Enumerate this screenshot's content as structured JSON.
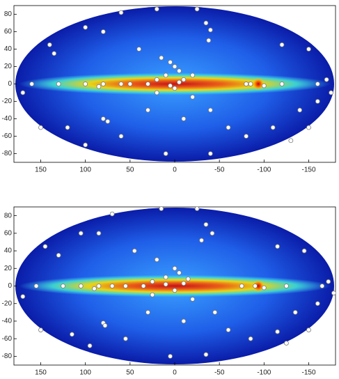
{
  "chart_data": [
    {
      "type": "scatter",
      "color": "#ffffff",
      "x": [
        60,
        20,
        -25,
        -35,
        -40,
        -38,
        40,
        15,
        5,
        0,
        -5,
        10,
        20,
        -20,
        -10,
        30,
        50,
        60,
        80,
        85,
        100,
        130,
        160,
        -80,
        -85,
        -100,
        -120,
        -160,
        -170,
        140,
        135,
        100,
        80,
        -120,
        -150,
        -140,
        -160,
        -150,
        120,
        80,
        75,
        60,
        30,
        -10,
        -40,
        -60,
        -80,
        -40,
        10,
        100,
        150,
        -110,
        -130,
        170,
        -175,
        20,
        -20,
        0,
        -5,
        5
      ],
      "values": [
        82,
        86,
        86,
        70,
        62,
        50,
        40,
        30,
        25,
        20,
        15,
        10,
        5,
        10,
        5,
        0,
        0,
        0,
        0,
        -3,
        0,
        0,
        0,
        0,
        0,
        -2,
        0,
        0,
        5,
        45,
        35,
        65,
        60,
        45,
        40,
        -30,
        -20,
        -50,
        -50,
        -40,
        -43,
        -60,
        -30,
        -40,
        -30,
        -50,
        -60,
        -80,
        -80,
        -70,
        -50,
        -50,
        -65,
        -10,
        -10,
        -10,
        -15,
        -5,
        2,
        -2
      ],
      "xlim": [
        180,
        -180
      ],
      "xticks": [
        150,
        100,
        50,
        0,
        -50,
        -100,
        -150
      ],
      "ylim": [
        -90,
        90
      ],
      "yticks": [
        -80,
        -60,
        -40,
        -20,
        0,
        20,
        40,
        60,
        80
      ]
    },
    {
      "type": "scatter",
      "color": "#ffffff",
      "x": [
        70,
        15,
        -25,
        -35,
        -42,
        -30,
        45,
        20,
        0,
        -5,
        10,
        25,
        -15,
        -10,
        35,
        55,
        70,
        85,
        90,
        105,
        125,
        155,
        -75,
        -90,
        -100,
        -125,
        -165,
        -172,
        145,
        130,
        105,
        85,
        -115,
        -145,
        -135,
        -160,
        -150,
        115,
        80,
        78,
        55,
        30,
        -10,
        -45,
        -60,
        -85,
        -35,
        5,
        95,
        150,
        -115,
        -125,
        170,
        -178,
        25,
        -20,
        0,
        10
      ],
      "values": [
        82,
        88,
        88,
        70,
        60,
        52,
        40,
        30,
        20,
        15,
        10,
        5,
        8,
        3,
        0,
        0,
        0,
        0,
        -3,
        0,
        0,
        0,
        0,
        0,
        -2,
        0,
        0,
        5,
        45,
        35,
        60,
        60,
        45,
        40,
        -30,
        -20,
        -50,
        -55,
        -42,
        -45,
        -60,
        -30,
        -40,
        -30,
        -50,
        -60,
        -78,
        -80,
        -68,
        -50,
        -52,
        -65,
        -12,
        -8,
        -10,
        -15,
        -5,
        2
      ],
      "xlim": [
        180,
        -180
      ],
      "xticks": [
        150,
        100,
        50,
        0,
        -50,
        -100,
        -150
      ],
      "ylim": [
        -90,
        90
      ],
      "yticks": [
        -80,
        -60,
        -40,
        -20,
        0,
        20,
        40,
        60,
        80
      ]
    }
  ]
}
